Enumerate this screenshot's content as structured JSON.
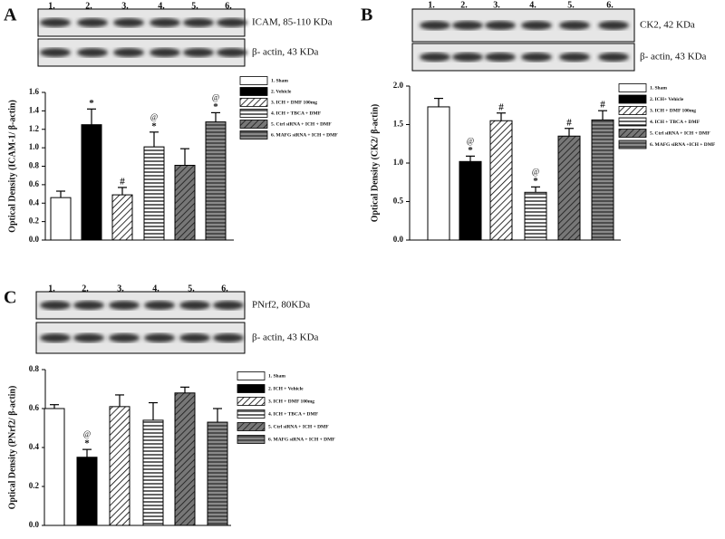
{
  "chart_data": [
    {
      "type": "bar",
      "panel": "A",
      "lanes": [
        "1.",
        "2.",
        "3.",
        "4.",
        "5.",
        "6."
      ],
      "blots": [
        "ICAM, 85-110 KDa",
        "β- actin, 43 KDa"
      ],
      "y_label": "Optical Density (ICAM-1/ β-actin)",
      "categories": [
        "1. Sham",
        "2. Vehicle",
        "3. ICH + DMF 100mg",
        "4. ICH + TBCA + DMF",
        "5. Ctrl siRNA + ICH + DMF",
        "6. MAFG siRNA + ICH + DMF"
      ],
      "values": [
        0.46,
        1.25,
        0.49,
        1.01,
        0.81,
        1.28
      ],
      "errors": [
        0.07,
        0.17,
        0.08,
        0.16,
        0.18,
        0.1
      ],
      "annotations": [
        [],
        [
          "*"
        ],
        [
          "#"
        ],
        [
          "@",
          "*"
        ],
        [],
        [
          "@",
          "*"
        ]
      ],
      "fills": [
        "white",
        "black",
        "diagonal",
        "horizontal",
        "dark-diagonal",
        "gray-horizontal"
      ],
      "ylim": [
        0,
        1.6
      ],
      "yticks": [
        {
          "value": 0,
          "label": "0.0"
        },
        0.2,
        0.4,
        0.6,
        0.8,
        {
          "value": 1,
          "label": "1.0"
        },
        1.2,
        1.4,
        1.6
      ]
    },
    {
      "type": "bar",
      "panel": "B",
      "lanes": [
        "1.",
        "2.",
        "3.",
        "4.",
        "5.",
        "6."
      ],
      "blots": [
        "CK2, 42 KDa",
        "β- actin, 43 KDa"
      ],
      "y_label": "Optical Density (CK2/ β-actin)",
      "categories": [
        "1. Sham",
        "2. ICH+ Vehicle",
        "3. ICH + DMF 100mg",
        "4. ICH + TBCA + DMF",
        "5. Ctrl siRNA + ICH + DMF",
        "6. MAFG siRNA +ICH + DMF"
      ],
      "values": [
        1.73,
        1.02,
        1.55,
        0.62,
        1.35,
        1.56
      ],
      "errors": [
        0.11,
        0.07,
        0.1,
        0.07,
        0.1,
        0.12
      ],
      "annotations": [
        [],
        [
          "@",
          "*"
        ],
        [
          "#"
        ],
        [
          "@",
          "*"
        ],
        [
          "#"
        ],
        [
          "#"
        ]
      ],
      "fills": [
        "white",
        "black",
        "diagonal",
        "horizontal",
        "dark-diagonal",
        "gray-horizontal"
      ],
      "ylim": [
        0,
        2.0
      ],
      "yticks": [
        {
          "value": 0,
          "label": "0.0"
        },
        0.5,
        {
          "value": 1,
          "label": "1.0"
        },
        1.5,
        {
          "value": 2,
          "label": "2.0"
        }
      ]
    },
    {
      "type": "bar",
      "panel": "C",
      "lanes": [
        "1.",
        "2.",
        "3.",
        "4.",
        "5.",
        "6."
      ],
      "blots": [
        "PNrf2, 80KDa",
        "β- actin, 43 KDa"
      ],
      "y_label": "Optical Density (PNrf2/ β-actin)",
      "categories": [
        "1. Sham",
        "2. ICH + Vehicle",
        "3. ICH + DMF 100mg",
        "4. ICH + TBCA + DMF",
        "5. Ctrl siRNA + ICH + DMF",
        "6. MAFG siRNA + ICH + DMF"
      ],
      "values": [
        0.6,
        0.35,
        0.61,
        0.54,
        0.68,
        0.53
      ],
      "errors": [
        0.02,
        0.04,
        0.06,
        0.09,
        0.03,
        0.07
      ],
      "annotations": [
        [],
        [
          "@",
          "*"
        ],
        [],
        [],
        [],
        []
      ],
      "fills": [
        "white",
        "black",
        "diagonal",
        "horizontal",
        "dark-diagonal",
        "gray-horizontal"
      ],
      "ylim": [
        0,
        0.8
      ],
      "yticks": [
        {
          "value": 0,
          "label": "0.0"
        },
        0.2,
        0.4,
        0.6,
        0.8
      ]
    }
  ]
}
